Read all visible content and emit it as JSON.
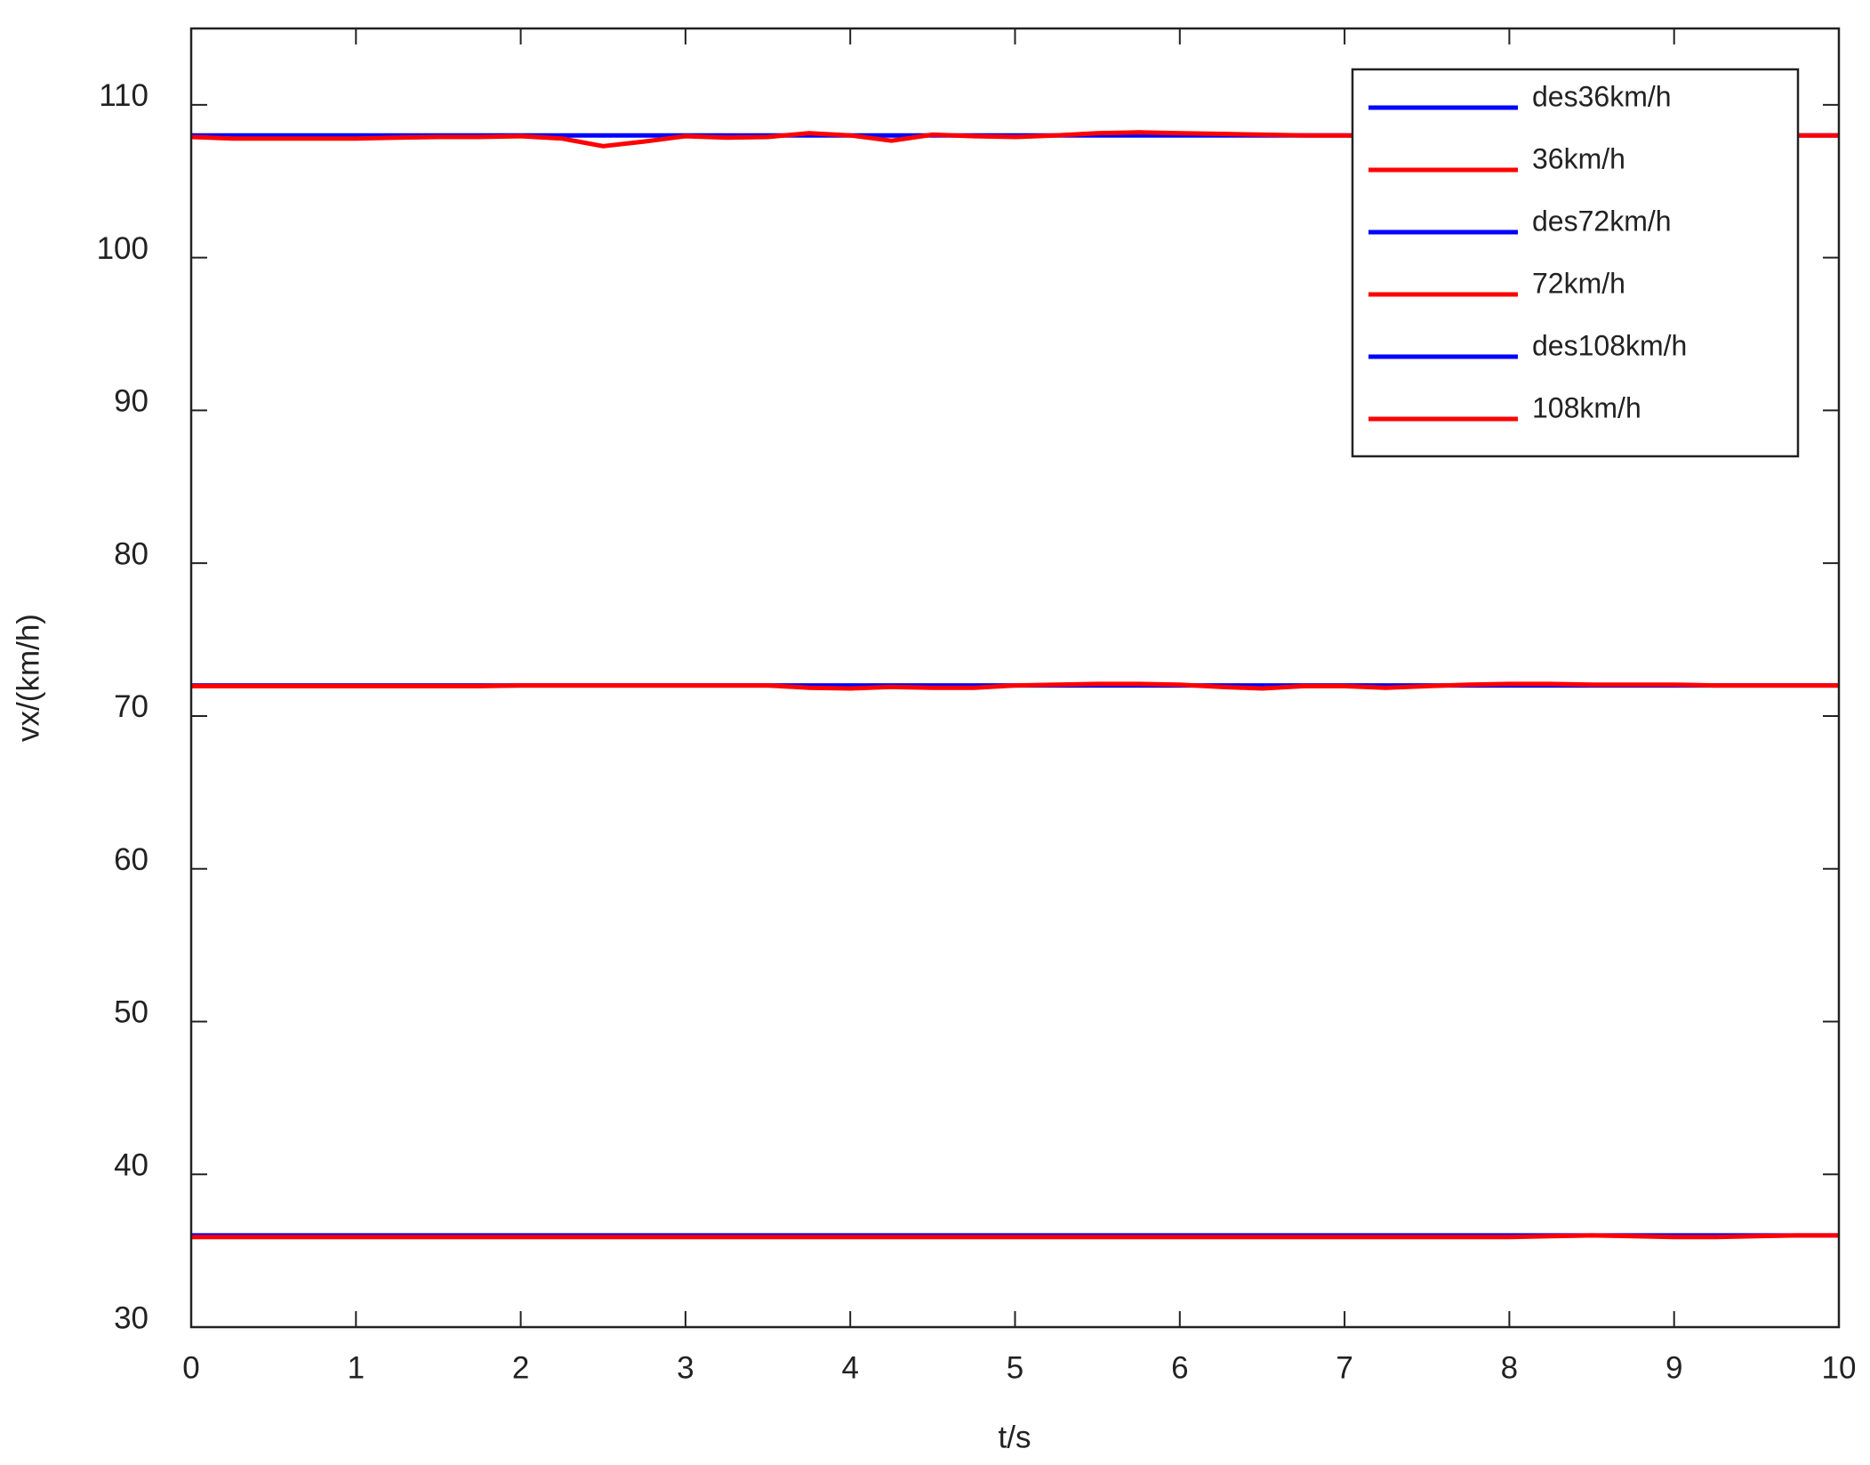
{
  "chart_data": {
    "type": "line",
    "x": [
      0,
      0.25,
      0.5,
      0.75,
      1,
      1.25,
      1.5,
      1.75,
      2,
      2.25,
      2.5,
      2.75,
      3,
      3.25,
      3.5,
      3.75,
      4,
      4.25,
      4.5,
      4.75,
      5,
      5.25,
      5.5,
      5.75,
      6,
      6.25,
      6.5,
      6.75,
      7,
      7.25,
      7.5,
      7.75,
      8,
      8.25,
      8.5,
      8.75,
      9,
      9.25,
      9.5,
      9.75,
      10
    ],
    "series": [
      {
        "name": "des36km/h",
        "color": "#0000ff",
        "values": [
          36,
          36,
          36,
          36,
          36,
          36,
          36,
          36,
          36,
          36,
          36,
          36,
          36,
          36,
          36,
          36,
          36,
          36,
          36,
          36,
          36,
          36,
          36,
          36,
          36,
          36,
          36,
          36,
          36,
          36,
          36,
          36,
          36,
          36,
          36,
          36,
          36,
          36,
          36,
          36,
          36
        ]
      },
      {
        "name": "36km/h",
        "color": "#ff0000",
        "values": [
          35.9,
          35.9,
          35.9,
          35.9,
          35.9,
          35.9,
          35.9,
          35.9,
          35.9,
          35.9,
          35.9,
          35.9,
          35.9,
          35.9,
          35.9,
          35.9,
          35.9,
          35.9,
          35.9,
          35.9,
          35.9,
          35.9,
          35.9,
          35.9,
          35.9,
          35.9,
          35.9,
          35.9,
          35.9,
          35.9,
          35.9,
          35.9,
          35.9,
          35.95,
          36,
          35.95,
          35.9,
          35.9,
          35.95,
          36,
          36
        ]
      },
      {
        "name": "des72km/h",
        "color": "#0000ff",
        "values": [
          72,
          72,
          72,
          72,
          72,
          72,
          72,
          72,
          72,
          72,
          72,
          72,
          72,
          72,
          72,
          72,
          72,
          72,
          72,
          72,
          72,
          72,
          72,
          72,
          72,
          72,
          72,
          72,
          72,
          72,
          72,
          72,
          72,
          72,
          72,
          72,
          72,
          72,
          72,
          72,
          72
        ]
      },
      {
        "name": "72km/h",
        "color": "#ff0000",
        "values": [
          71.95,
          71.95,
          71.95,
          71.95,
          71.95,
          71.95,
          71.95,
          71.95,
          72,
          72,
          72,
          72,
          72,
          72,
          72,
          71.85,
          71.8,
          71.9,
          71.85,
          71.85,
          72,
          72.05,
          72.1,
          72.1,
          72.05,
          71.9,
          71.8,
          71.95,
          71.95,
          71.85,
          71.95,
          72.05,
          72.1,
          72.1,
          72.05,
          72.05,
          72.05,
          72,
          72,
          72,
          72
        ]
      },
      {
        "name": "des108km/h",
        "color": "#0000ff",
        "values": [
          108,
          108,
          108,
          108,
          108,
          108,
          108,
          108,
          108,
          108,
          108,
          108,
          108,
          108,
          108,
          108,
          108,
          108,
          108,
          108,
          108,
          108,
          108,
          108,
          108,
          108,
          108,
          108,
          108,
          108,
          108,
          108,
          108,
          108,
          108,
          108,
          108,
          108,
          108,
          108,
          108
        ]
      },
      {
        "name": "108km/h",
        "color": "#ff0000",
        "values": [
          107.9,
          107.8,
          107.8,
          107.8,
          107.8,
          107.85,
          107.9,
          107.9,
          107.95,
          107.8,
          107.3,
          107.6,
          107.95,
          107.85,
          107.9,
          108.15,
          108,
          107.65,
          108.05,
          107.95,
          107.9,
          108,
          108.15,
          108.2,
          108.15,
          108.1,
          108.05,
          108,
          108,
          107.95,
          107.95,
          108,
          108,
          108,
          108,
          108,
          108,
          108,
          108,
          108,
          108
        ]
      }
    ],
    "xlabel": "t/s",
    "ylabel": "vx/(km/h)",
    "xlim": [
      0,
      10
    ],
    "xticks": [
      0,
      1,
      2,
      3,
      4,
      5,
      6,
      7,
      8,
      9,
      10
    ],
    "ylim": [
      30,
      115
    ],
    "yticks": [
      30,
      40,
      50,
      60,
      70,
      80,
      90,
      100,
      110
    ],
    "grid": false,
    "legend": "upper right"
  }
}
